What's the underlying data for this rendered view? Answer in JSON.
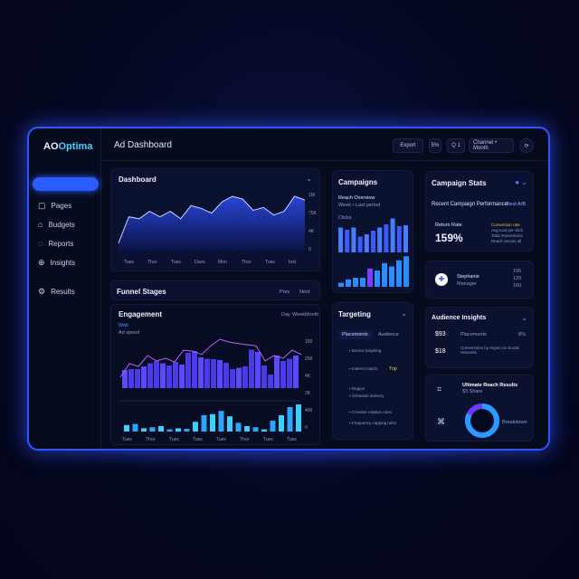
{
  "app": {
    "logo_a": "AO",
    "logo_b": "Optima",
    "title": "Ad Dashboard"
  },
  "sidebar": {
    "items": [
      {
        "label": "Pages",
        "icon": "page-icon"
      },
      {
        "label": "Budgets",
        "icon": "home-icon"
      },
      {
        "label": "Reports",
        "icon": "chat-icon"
      },
      {
        "label": "Insights",
        "icon": "globe-icon"
      },
      {
        "label": "Results",
        "icon": "settings-icon"
      }
    ]
  },
  "header": {
    "buttons": [
      "Export",
      "5%",
      "Q 1",
      "Channel • Month"
    ]
  },
  "dashboard": {
    "title": "Dashboard",
    "x_labels": [
      "Tues",
      "Thur",
      "Tues",
      "Dues",
      "Mon",
      "Thur",
      "Tues",
      "Inst"
    ],
    "y_labels": [
      "1M",
      "75K",
      "4K",
      "0"
    ],
    "values": [
      10,
      38,
      36,
      44,
      38,
      44,
      36,
      50,
      47,
      42,
      54,
      60,
      57,
      45,
      48,
      40,
      44,
      60,
      56
    ]
  },
  "funnel_strip": {
    "title": "Funnel Stages",
    "legend": [
      "Prev",
      "Next"
    ]
  },
  "engagement": {
    "title": "Engagement",
    "legend": [
      "Day",
      "Week",
      "Month"
    ],
    "sub1": "Web",
    "sub2": "Ad spend",
    "bars": [
      40,
      42,
      42,
      48,
      55,
      60,
      55,
      50,
      58,
      52,
      78,
      82,
      68,
      65,
      64,
      62,
      56,
      42,
      45,
      48,
      85,
      80,
      50,
      30,
      72,
      60,
      65,
      72
    ],
    "line": [
      20,
      45,
      40,
      60,
      50,
      55,
      48,
      70,
      68,
      62,
      78,
      90,
      85,
      82,
      80,
      78,
      50,
      60,
      55,
      70,
      62
    ],
    "bottom_bars": [
      12,
      14,
      6,
      8,
      10,
      4,
      6,
      5,
      18,
      30,
      32,
      38,
      28,
      16,
      10,
      8,
      4,
      20,
      30,
      45,
      50
    ],
    "x_labels": [
      "Tues",
      "Thur",
      "Tues",
      "Tues",
      "Tues",
      "Thur",
      "Tues",
      "Tues"
    ],
    "y_labels": [
      "150",
      "25K",
      "4K",
      "2K",
      "400",
      "0"
    ]
  },
  "campaigns": {
    "title": "Campaigns",
    "sub_title": "Reach Overview",
    "sub": "Week • Last period",
    "small": "Clicks",
    "bars": [
      55,
      50,
      55,
      35,
      40,
      48,
      55,
      62,
      75,
      58,
      60
    ],
    "bars2": [
      10,
      18,
      22,
      22,
      45,
      40,
      58,
      50,
      65,
      75
    ]
  },
  "targeting": {
    "title": "Targeting",
    "tabs": [
      "Placements",
      "Audience"
    ],
    "items": [
      "Device targeting",
      "Interest match",
      "Region",
      "Schedule delivery",
      "Creative rotation rules",
      "Frequency capping rules"
    ],
    "badge": "Top"
  },
  "campaign_card": {
    "title": "Campaign Stats",
    "sub": "Recent Campaign Performance",
    "badge": "Best A/B",
    "metric_label": "Return Rate",
    "metric": "159%",
    "notes": [
      "Conversion rate",
      "Avg cost per click",
      "Total impressions",
      "Reach across all"
    ]
  },
  "profile": {
    "name": "Stephanie",
    "role": "Manager",
    "stats": [
      "105",
      "120",
      "160"
    ]
  },
  "audience": {
    "title": "Audience Insights",
    "rows": [
      {
        "id": "$93",
        "text": "Placements",
        "val": "8%"
      },
      {
        "id": "$18",
        "text": "Conversions by region on Social networks",
        "val": ""
      }
    ]
  },
  "donut": {
    "title": "Ultimate Reach Results",
    "sub": "$3 Share",
    "label": "Breakdown",
    "fraction": 0.82
  },
  "colors": {
    "accent": "#2a5cff",
    "cyan": "#3ad0ff",
    "violet": "#8a4dff"
  }
}
